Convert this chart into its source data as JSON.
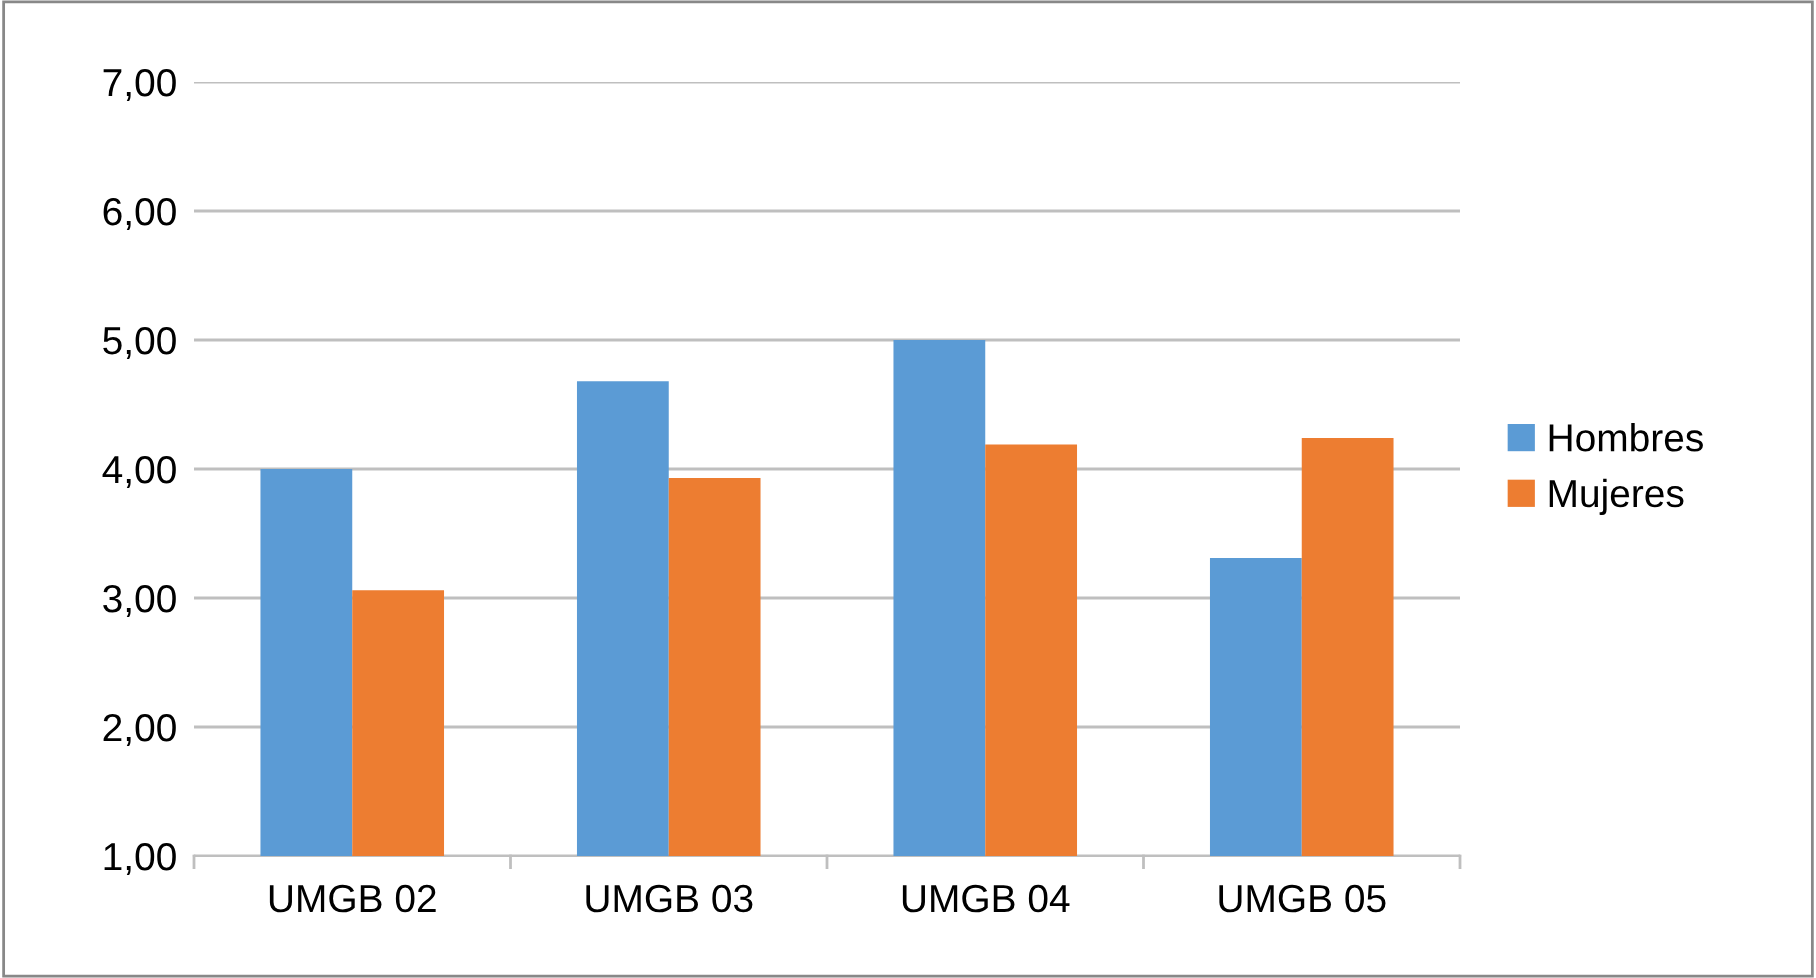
{
  "chart_data": {
    "type": "bar",
    "categories": [
      "UMGB 02",
      "UMGB 03",
      "UMGB 04",
      "UMGB 05"
    ],
    "series": [
      {
        "name": "Hombres",
        "color": "#5b9bd5",
        "values": [
          4.0,
          4.68,
          5.0,
          3.31
        ]
      },
      {
        "name": "Mujeres",
        "color": "#ed7d31",
        "values": [
          3.06,
          3.93,
          4.19,
          4.24
        ]
      }
    ],
    "ylim": [
      1,
      7
    ],
    "yticks": [
      {
        "value": 1,
        "label": "1,00"
      },
      {
        "value": 2,
        "label": "2,00"
      },
      {
        "value": 3,
        "label": "3,00"
      },
      {
        "value": 4,
        "label": "4,00"
      },
      {
        "value": 5,
        "label": "5,00"
      },
      {
        "value": 6,
        "label": "6,00"
      },
      {
        "value": 7,
        "label": "7,00"
      }
    ],
    "grid": "y",
    "legend": "right"
  }
}
